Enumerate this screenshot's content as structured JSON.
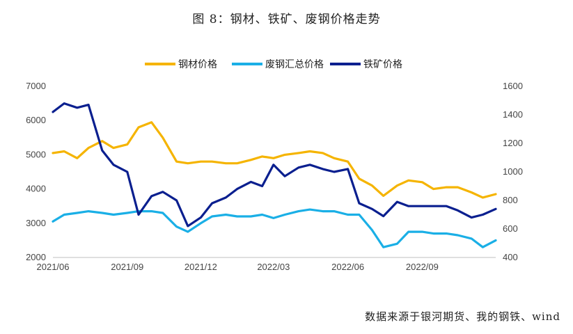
{
  "caption": "图 8：钢材、铁矿、废钢价格走势",
  "source": "数据来源于银河期货、我的钢铁、wind",
  "chart_data": {
    "type": "line",
    "x_ticks": [
      "2021/06",
      "2021/09",
      "2021/12",
      "2022/03",
      "2022/06",
      "2022/09"
    ],
    "y_left": {
      "range": [
        2000,
        7000
      ],
      "ticks": [
        "2000",
        "3000",
        "4000",
        "5000",
        "6000",
        "7000"
      ]
    },
    "y_right": {
      "range": [
        400,
        1600
      ],
      "ticks": [
        "400",
        "600",
        "800",
        "1000",
        "1200",
        "1400",
        "1600"
      ]
    },
    "grid": false,
    "legend_placement": "top",
    "series": [
      {
        "name": "钢材价格",
        "axis": "left",
        "color": "#F5B400",
        "x": [
          "2021-06-01",
          "2021-06-15",
          "2021-07-01",
          "2021-07-15",
          "2021-08-01",
          "2021-08-15",
          "2021-09-01",
          "2021-09-15",
          "2021-10-01",
          "2021-10-15",
          "2021-11-01",
          "2021-11-15",
          "2021-12-01",
          "2021-12-15",
          "2022-01-01",
          "2022-01-15",
          "2022-02-01",
          "2022-02-15",
          "2022-03-01",
          "2022-03-15",
          "2022-04-01",
          "2022-04-15",
          "2022-05-01",
          "2022-05-15",
          "2022-06-01",
          "2022-06-15",
          "2022-07-01",
          "2022-07-15",
          "2022-08-01",
          "2022-08-15",
          "2022-09-01",
          "2022-09-15",
          "2022-10-01",
          "2022-10-15",
          "2022-11-01",
          "2022-11-15",
          "2022-12-01"
        ],
        "values": [
          5050,
          5100,
          4900,
          5200,
          5400,
          5200,
          5300,
          5800,
          5950,
          5500,
          4800,
          4750,
          4800,
          4800,
          4750,
          4750,
          4850,
          4950,
          4900,
          5000,
          5050,
          5100,
          5050,
          4900,
          4800,
          4300,
          4100,
          3800,
          4100,
          4250,
          4200,
          4000,
          4050,
          4050,
          3900,
          3750,
          3850
        ]
      },
      {
        "name": "废钢汇总价格",
        "axis": "left",
        "color": "#1AAFE6",
        "x": [
          "2021-06-01",
          "2021-06-15",
          "2021-07-01",
          "2021-07-15",
          "2021-08-01",
          "2021-08-15",
          "2021-09-01",
          "2021-09-15",
          "2021-10-01",
          "2021-10-15",
          "2021-11-01",
          "2021-11-15",
          "2021-12-01",
          "2021-12-15",
          "2022-01-01",
          "2022-01-15",
          "2022-02-01",
          "2022-02-15",
          "2022-03-01",
          "2022-03-15",
          "2022-04-01",
          "2022-04-15",
          "2022-05-01",
          "2022-05-15",
          "2022-06-01",
          "2022-06-15",
          "2022-07-01",
          "2022-07-15",
          "2022-08-01",
          "2022-08-15",
          "2022-09-01",
          "2022-09-15",
          "2022-10-01",
          "2022-10-15",
          "2022-11-01",
          "2022-11-15",
          "2022-12-01"
        ],
        "values": [
          3050,
          3250,
          3300,
          3350,
          3300,
          3250,
          3300,
          3350,
          3350,
          3300,
          2900,
          2750,
          3000,
          3200,
          3250,
          3200,
          3200,
          3250,
          3150,
          3250,
          3350,
          3400,
          3350,
          3350,
          3250,
          3250,
          2800,
          2300,
          2400,
          2750,
          2750,
          2700,
          2700,
          2650,
          2550,
          2300,
          2500
        ]
      },
      {
        "name": "铁矿价格",
        "axis": "right",
        "color": "#0A1F8F",
        "x": [
          "2021-06-01",
          "2021-06-15",
          "2021-07-01",
          "2021-07-15",
          "2021-08-01",
          "2021-08-15",
          "2021-09-01",
          "2021-09-15",
          "2021-10-01",
          "2021-10-15",
          "2021-11-01",
          "2021-11-15",
          "2021-12-01",
          "2021-12-15",
          "2022-01-01",
          "2022-01-15",
          "2022-02-01",
          "2022-02-15",
          "2022-03-01",
          "2022-03-15",
          "2022-04-01",
          "2022-04-15",
          "2022-05-01",
          "2022-05-15",
          "2022-06-01",
          "2022-06-15",
          "2022-07-01",
          "2022-07-15",
          "2022-08-01",
          "2022-08-15",
          "2022-09-01",
          "2022-09-15",
          "2022-10-01",
          "2022-10-15",
          "2022-11-01",
          "2022-11-15",
          "2022-12-01"
        ],
        "values": [
          1420,
          1480,
          1450,
          1470,
          1150,
          1050,
          1000,
          700,
          830,
          860,
          800,
          620,
          680,
          780,
          820,
          880,
          930,
          900,
          1050,
          970,
          1030,
          1050,
          1020,
          1000,
          1020,
          780,
          740,
          690,
          790,
          760,
          760,
          760,
          760,
          730,
          680,
          700,
          740
        ]
      }
    ]
  }
}
